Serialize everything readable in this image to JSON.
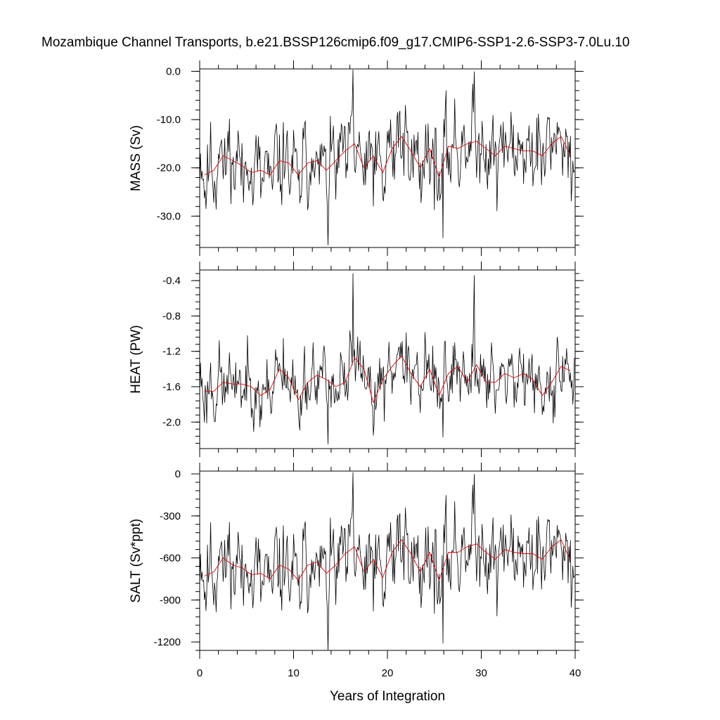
{
  "title": "Mozambique Channel Transports, b.e21.BSSP126cmip6.f09_g17.CMIP6-SSP1-2.6-SSP3-7.0Lu.10",
  "colors": {
    "raw": "#000000",
    "annual_mean": "#e00000"
  },
  "chart_data": [
    {
      "type": "line",
      "ylabel": "MASS (Sv)",
      "xlabel": "",
      "xlim": [
        0,
        40
      ],
      "ylim": [
        -36.5,
        0.5
      ],
      "yticks": [
        0,
        -10,
        -20,
        -30
      ],
      "ytick_labels": [
        "0.0",
        "-10.0",
        "-20.0",
        "-30.0"
      ],
      "annual_mean": [
        -21.5,
        -20.5,
        -17.5,
        -18.5,
        -19.5,
        -21.0,
        -20.5,
        -21.5,
        -18.5,
        -19.0,
        -21.5,
        -19.0,
        -18.5,
        -20.5,
        -18.5,
        -16.5,
        -15.0,
        -20.0,
        -17.5,
        -21.0,
        -16.0,
        -13.5,
        -16.5,
        -20.0,
        -16.0,
        -22.0,
        -15.5,
        -16.0,
        -15.0,
        -14.5,
        -16.0,
        -17.5,
        -15.5,
        -16.0,
        -16.5,
        -16.5,
        -17.5,
        -15.0,
        -13.5,
        -17.5
      ],
      "raw_mean": -18.0,
      "raw_amplitude": 6.5,
      "raw_min": -36.0,
      "raw_max": 0.3,
      "seed": 11
    },
    {
      "type": "line",
      "ylabel": "HEAT (PW)",
      "xlabel": "",
      "xlim": [
        0,
        40
      ],
      "ylim": [
        -2.3,
        -0.28
      ],
      "yticks": [
        -0.4,
        -0.8,
        -1.2,
        -1.6,
        -2.0
      ],
      "ytick_labels": [
        "-0.4",
        "-0.8",
        "-1.2",
        "-1.6",
        "-2.0"
      ],
      "annual_mean": [
        -1.65,
        -1.65,
        -1.55,
        -1.57,
        -1.57,
        -1.6,
        -1.7,
        -1.63,
        -1.4,
        -1.5,
        -1.75,
        -1.55,
        -1.47,
        -1.52,
        -1.6,
        -1.55,
        -1.27,
        -1.4,
        -1.78,
        -1.52,
        -1.37,
        -1.25,
        -1.45,
        -1.6,
        -1.4,
        -1.7,
        -1.45,
        -1.37,
        -1.55,
        -1.35,
        -1.55,
        -1.55,
        -1.45,
        -1.5,
        -1.45,
        -1.52,
        -1.7,
        -1.55,
        -1.37,
        -1.42
      ],
      "raw_mean": -1.55,
      "raw_amplitude": 0.28,
      "raw_min": -2.25,
      "raw_max": -0.32,
      "seed": 23
    },
    {
      "type": "line",
      "ylabel": "SALT (Sv*ppt)",
      "xlabel": "Years of Integration",
      "xlim": [
        0,
        40
      ],
      "ylim": [
        -1260,
        20
      ],
      "xticks": [
        0,
        10,
        20,
        30,
        40
      ],
      "xtick_labels": [
        "0",
        "10",
        "20",
        "30",
        "40"
      ],
      "yticks": [
        0,
        -300,
        -600,
        -900,
        -1200
      ],
      "ytick_labels": [
        "0",
        "-300",
        "-600",
        "-900",
        "-1200"
      ],
      "annual_mean": [
        -730,
        -700,
        -600,
        -650,
        -670,
        -720,
        -710,
        -750,
        -650,
        -680,
        -760,
        -650,
        -630,
        -710,
        -650,
        -570,
        -520,
        -700,
        -610,
        -740,
        -560,
        -470,
        -570,
        -700,
        -560,
        -760,
        -560,
        -560,
        -520,
        -500,
        -560,
        -610,
        -540,
        -560,
        -570,
        -570,
        -610,
        -520,
        -470,
        -620
      ],
      "raw_mean": -620,
      "raw_amplitude": 230,
      "raw_min": -1260,
      "raw_max": 10,
      "seed": 11
    }
  ]
}
